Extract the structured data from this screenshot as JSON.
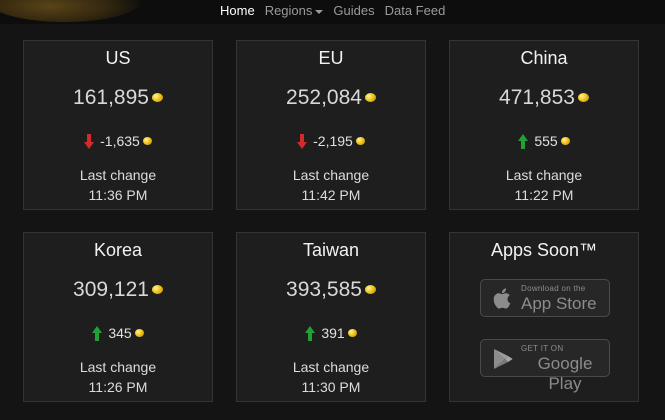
{
  "nav": {
    "home": "Home",
    "regions": "Regions",
    "guides": "Guides",
    "data_feed": "Data Feed"
  },
  "colors": {
    "up": "#23a035",
    "down": "#d32a2a",
    "coin": "#f0c419"
  },
  "cards": [
    {
      "region": "US",
      "price": "161,895",
      "change": "-1,635",
      "direction": "down",
      "last_change_label": "Last change",
      "time": "11:36 PM"
    },
    {
      "region": "EU",
      "price": "252,084",
      "change": "-2,195",
      "direction": "down",
      "last_change_label": "Last change",
      "time": "11:42 PM"
    },
    {
      "region": "China",
      "price": "471,853",
      "change": "555",
      "direction": "up",
      "last_change_label": "Last change",
      "time": "11:22 PM"
    },
    {
      "region": "Korea",
      "price": "309,121",
      "change": "345",
      "direction": "up",
      "last_change_label": "Last change",
      "time": "11:26 PM"
    },
    {
      "region": "Taiwan",
      "price": "393,585",
      "change": "391",
      "direction": "up",
      "last_change_label": "Last change",
      "time": "11:30 PM"
    }
  ],
  "apps": {
    "title": "Apps Soon™",
    "app_store_small": "Download on the",
    "app_store_big": "App Store",
    "google_small": "GET IT ON",
    "google_big": "Google Play"
  }
}
